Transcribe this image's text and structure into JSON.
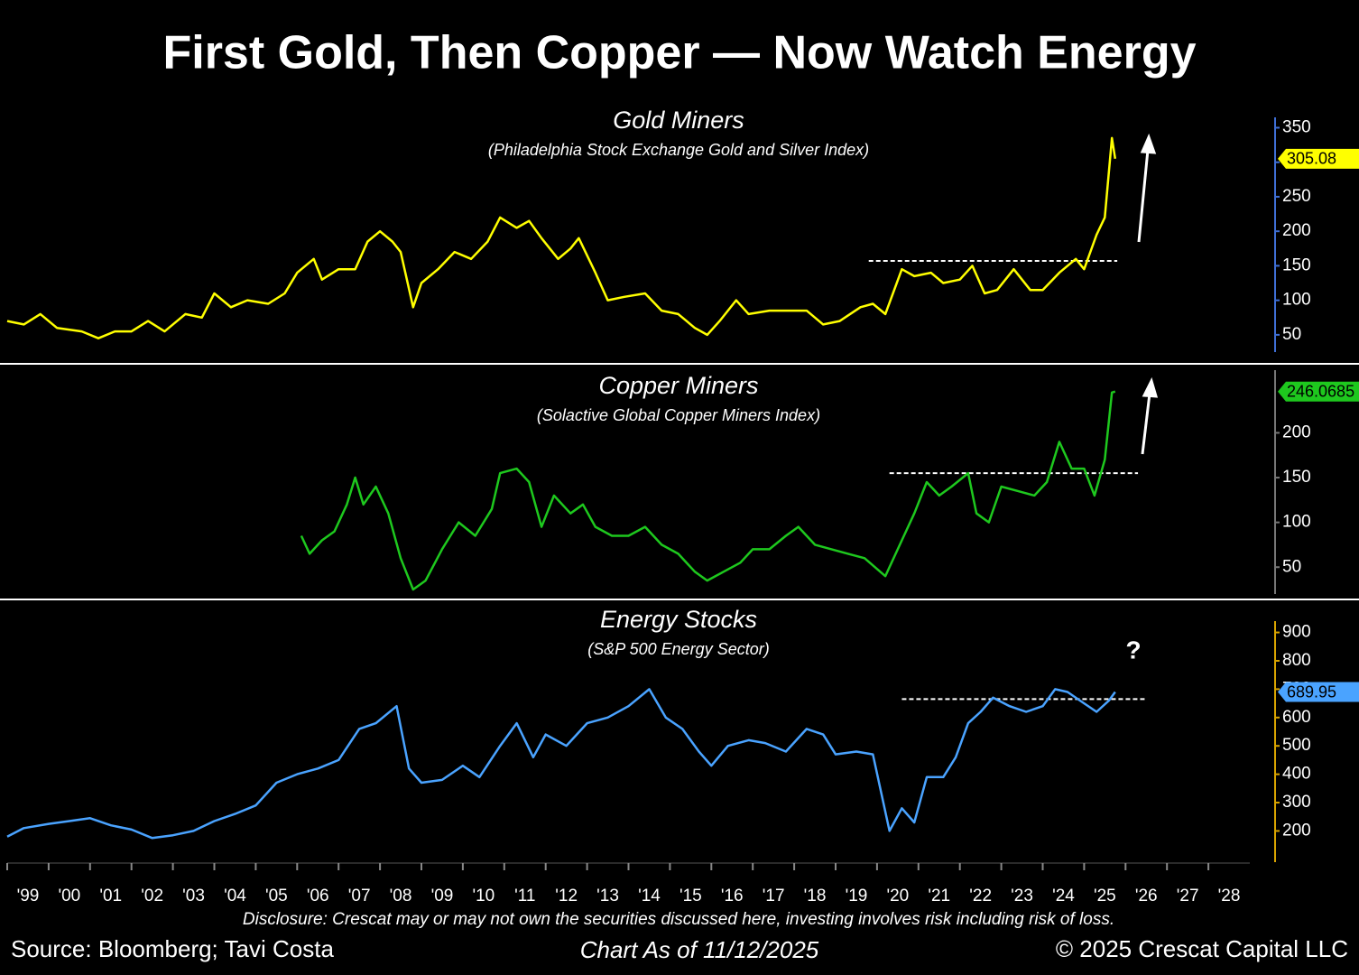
{
  "title": "First Gold, Then Copper — Now Watch Energy",
  "chart_data": [
    {
      "type": "line",
      "title": "Gold Miners",
      "subtitle": "(Philadelphia Stock Exchange Gold and Silver Index)",
      "color": "#ffff00",
      "axis_color": "#3f6fd6",
      "xlim": [
        1999,
        2029
      ],
      "ylim": [
        25,
        365
      ],
      "yticks": [
        50,
        100,
        150,
        200,
        250,
        300,
        350
      ],
      "last_value": 305.08,
      "resistance": {
        "value": 157,
        "x": [
          2019.8,
          2025.8
        ]
      },
      "x": [
        1999.0,
        1999.4,
        1999.8,
        2000.2,
        2000.8,
        2001.2,
        2001.6,
        2002.0,
        2002.4,
        2002.8,
        2003.3,
        2003.7,
        2004.0,
        2004.4,
        2004.8,
        2005.3,
        2005.7,
        2006.0,
        2006.4,
        2006.6,
        2007.0,
        2007.4,
        2007.7,
        2008.0,
        2008.3,
        2008.5,
        2008.8,
        2009.0,
        2009.4,
        2009.8,
        2010.2,
        2010.6,
        2010.9,
        2011.3,
        2011.6,
        2011.9,
        2012.3,
        2012.6,
        2012.8,
        2013.2,
        2013.5,
        2013.9,
        2014.4,
        2014.8,
        2015.2,
        2015.6,
        2015.9,
        2016.2,
        2016.6,
        2016.9,
        2017.4,
        2017.9,
        2018.3,
        2018.7,
        2019.1,
        2019.6,
        2019.9,
        2020.2,
        2020.6,
        2020.9,
        2021.3,
        2021.6,
        2022.0,
        2022.3,
        2022.6,
        2022.9,
        2023.3,
        2023.7,
        2024.0,
        2024.4,
        2024.8,
        2025.0,
        2025.3,
        2025.5,
        2025.67,
        2025.75
      ],
      "values": [
        70,
        65,
        80,
        60,
        55,
        45,
        55,
        55,
        70,
        55,
        80,
        75,
        110,
        90,
        100,
        95,
        110,
        140,
        160,
        130,
        145,
        145,
        185,
        200,
        185,
        170,
        90,
        125,
        145,
        170,
        160,
        185,
        220,
        205,
        215,
        190,
        160,
        175,
        190,
        140,
        100,
        105,
        110,
        85,
        80,
        60,
        50,
        70,
        100,
        80,
        85,
        85,
        85,
        65,
        70,
        90,
        95,
        80,
        145,
        135,
        140,
        125,
        130,
        150,
        110,
        115,
        145,
        115,
        115,
        140,
        160,
        145,
        195,
        220,
        335,
        305.08
      ]
    },
    {
      "type": "line",
      "title": "Copper Miners",
      "subtitle": "(Solactive Global Copper Miners Index)",
      "color": "#1ec81e",
      "axis_color": "#777777",
      "xlim": [
        1999,
        2029
      ],
      "ylim": [
        20,
        270
      ],
      "yticks": [
        50,
        100,
        150,
        200
      ],
      "last_value": 246.0685,
      "resistance": {
        "value": 155,
        "x": [
          2020.3,
          2026.3
        ]
      },
      "x": [
        2006.1,
        2006.3,
        2006.6,
        2006.9,
        2007.2,
        2007.4,
        2007.6,
        2007.9,
        2008.2,
        2008.5,
        2008.8,
        2009.1,
        2009.5,
        2009.9,
        2010.3,
        2010.7,
        2010.9,
        2011.3,
        2011.6,
        2011.9,
        2012.2,
        2012.6,
        2012.9,
        2013.2,
        2013.6,
        2014.0,
        2014.4,
        2014.8,
        2015.2,
        2015.6,
        2015.9,
        2016.3,
        2016.7,
        2017.0,
        2017.4,
        2017.8,
        2018.1,
        2018.5,
        2018.9,
        2019.3,
        2019.7,
        2020.2,
        2020.6,
        2020.9,
        2021.2,
        2021.5,
        2021.8,
        2022.2,
        2022.4,
        2022.7,
        2023.0,
        2023.4,
        2023.8,
        2024.1,
        2024.4,
        2024.7,
        2025.0,
        2025.25,
        2025.5,
        2025.67,
        2025.75
      ],
      "values": [
        85,
        65,
        80,
        90,
        120,
        150,
        120,
        140,
        110,
        60,
        25,
        35,
        70,
        100,
        85,
        115,
        155,
        160,
        145,
        95,
        130,
        110,
        120,
        95,
        85,
        85,
        95,
        75,
        65,
        45,
        35,
        45,
        55,
        70,
        70,
        85,
        95,
        75,
        70,
        65,
        60,
        40,
        80,
        110,
        145,
        130,
        140,
        155,
        110,
        100,
        140,
        135,
        130,
        145,
        190,
        160,
        160,
        130,
        170,
        245,
        246.0685
      ]
    },
    {
      "type": "line",
      "title": "Energy Stocks",
      "subtitle": "(S&P 500 Energy Sector)",
      "annotation": "?",
      "color": "#4aa3ff",
      "axis_color": "#d9a400",
      "xlim": [
        1999,
        2029
      ],
      "ylim": [
        90,
        940
      ],
      "yticks": [
        200,
        300,
        400,
        500,
        600,
        700,
        800,
        900
      ],
      "last_value": 689.95,
      "resistance": {
        "value": 665,
        "x": [
          2020.6,
          2026.5
        ]
      },
      "xticks": [
        {
          "value": 1999,
          "label": "'99"
        },
        {
          "value": 2000,
          "label": "'00"
        },
        {
          "value": 2001,
          "label": "'01"
        },
        {
          "value": 2002,
          "label": "'02"
        },
        {
          "value": 2003,
          "label": "'03"
        },
        {
          "value": 2004,
          "label": "'04"
        },
        {
          "value": 2005,
          "label": "'05"
        },
        {
          "value": 2006,
          "label": "'06"
        },
        {
          "value": 2007,
          "label": "'07"
        },
        {
          "value": 2008,
          "label": "'08"
        },
        {
          "value": 2009,
          "label": "'09"
        },
        {
          "value": 2010,
          "label": "'10"
        },
        {
          "value": 2011,
          "label": "'11"
        },
        {
          "value": 2012,
          "label": "'12"
        },
        {
          "value": 2013,
          "label": "'13"
        },
        {
          "value": 2014,
          "label": "'14"
        },
        {
          "value": 2015,
          "label": "'15"
        },
        {
          "value": 2016,
          "label": "'16"
        },
        {
          "value": 2017,
          "label": "'17"
        },
        {
          "value": 2018,
          "label": "'18"
        },
        {
          "value": 2019,
          "label": "'19"
        },
        {
          "value": 2020,
          "label": "'20"
        },
        {
          "value": 2021,
          "label": "'21"
        },
        {
          "value": 2022,
          "label": "'22"
        },
        {
          "value": 2023,
          "label": "'23"
        },
        {
          "value": 2024,
          "label": "'24"
        },
        {
          "value": 2025,
          "label": "'25"
        },
        {
          "value": 2026,
          "label": "'26"
        },
        {
          "value": 2027,
          "label": "'27"
        },
        {
          "value": 2028,
          "label": "'28"
        }
      ],
      "x": [
        1999.0,
        1999.4,
        2000.0,
        2000.5,
        2001.0,
        2001.5,
        2002.0,
        2002.5,
        2003.0,
        2003.5,
        2004.0,
        2004.5,
        2005.0,
        2005.5,
        2006.0,
        2006.5,
        2007.0,
        2007.5,
        2007.9,
        2008.4,
        2008.7,
        2009.0,
        2009.5,
        2010.0,
        2010.4,
        2010.9,
        2011.3,
        2011.7,
        2012.0,
        2012.5,
        2013.0,
        2013.5,
        2014.0,
        2014.5,
        2014.9,
        2015.3,
        2015.7,
        2016.0,
        2016.4,
        2016.9,
        2017.3,
        2017.8,
        2018.3,
        2018.7,
        2019.0,
        2019.5,
        2019.9,
        2020.3,
        2020.6,
        2020.9,
        2021.2,
        2021.6,
        2021.9,
        2022.2,
        2022.5,
        2022.8,
        2023.2,
        2023.6,
        2024.0,
        2024.3,
        2024.6,
        2024.9,
        2025.3,
        2025.6,
        2025.75
      ],
      "values": [
        180,
        210,
        225,
        235,
        245,
        220,
        205,
        175,
        185,
        200,
        235,
        260,
        290,
        370,
        400,
        420,
        450,
        560,
        580,
        640,
        420,
        370,
        380,
        430,
        390,
        500,
        580,
        460,
        540,
        500,
        580,
        600,
        640,
        700,
        600,
        560,
        480,
        430,
        500,
        520,
        510,
        480,
        560,
        540,
        470,
        480,
        470,
        200,
        280,
        230,
        390,
        390,
        460,
        580,
        620,
        670,
        640,
        620,
        640,
        700,
        690,
        660,
        620,
        660,
        689.95
      ]
    }
  ],
  "disclosure": "Disclosure: Crescat may or may not own the securities discussed here, investing involves risk including risk of loss.",
  "source": "Source: Bloomberg; Tavi Costa",
  "as_of": "Chart As of 11/12/2025",
  "copyright": "© 2025 Crescat Capital LLC"
}
